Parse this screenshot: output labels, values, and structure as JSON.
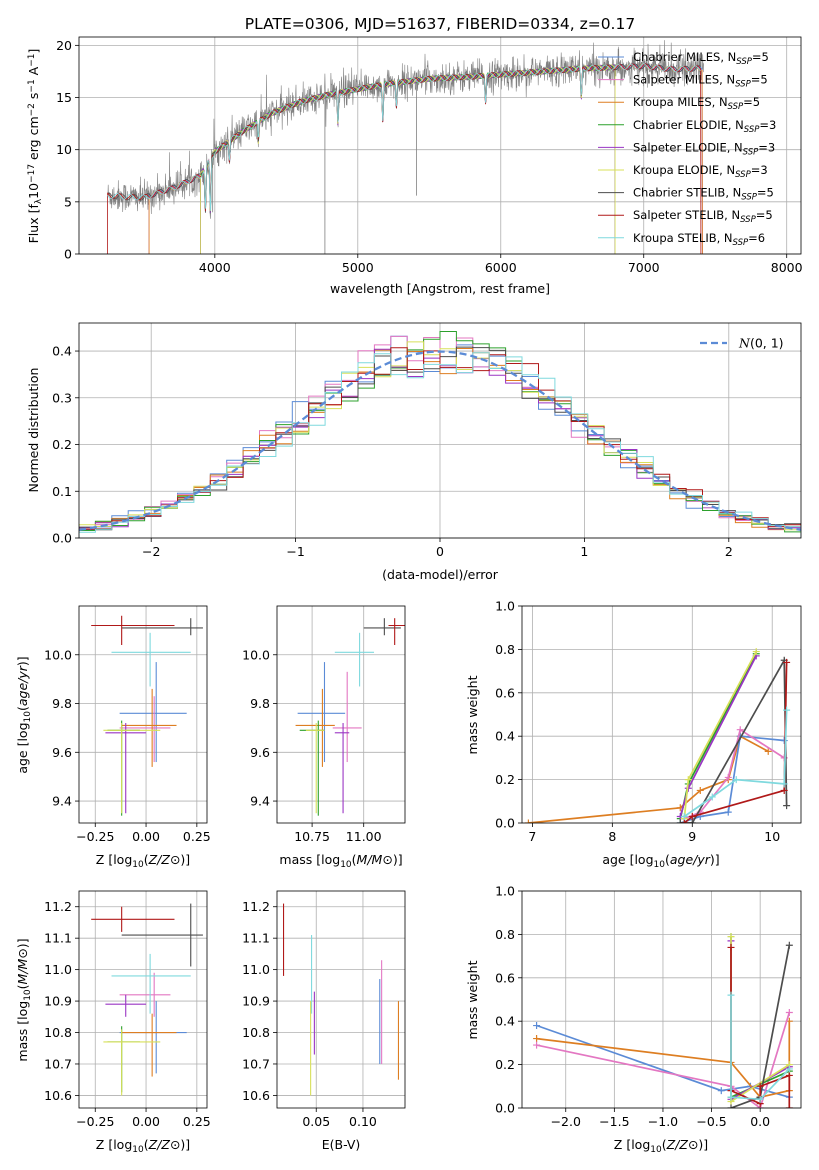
{
  "figure": {
    "title": "PLATE=0306, MJD=51637, FIBERID=0334, z=0.17"
  },
  "colors": {
    "Chabrier MILES": "#5b8bd6",
    "Salpeter MILES": "#e377c2",
    "Kroupa MILES": "#dd7e22",
    "Chabrier ELODIE": "#2ca02c",
    "Salpeter ELODIE": "#9a35c4",
    "Kroupa ELODIE": "#d8e05a",
    "Chabrier STELIB": "#4d4d4d",
    "Salpeter STELIB": "#b01919",
    "Kroupa STELIB": "#7fd9de",
    "data": "#808080",
    "gaussian": "#5b8bd6"
  },
  "chart_data": [
    {
      "id": "spectrum",
      "type": "line",
      "xlabel": "wavelength [Angstrom, rest frame]",
      "ylabel": "Flux [f_λ10^-17 erg cm^-2 s^-1 A^-1]",
      "xlim": [
        3050,
        8100
      ],
      "ylim": [
        0,
        20.8
      ],
      "xticks": [
        4000,
        5000,
        6000,
        7000,
        8000
      ],
      "yticks": [
        0,
        5,
        10,
        15,
        20
      ],
      "legend_loc": "upper right",
      "legend": [
        "Chabrier MILES, N_SSP=5",
        "Salpeter MILES, N_SSP=5",
        "Kroupa MILES, N_SSP=5",
        "Chabrier ELODIE, N_SSP=3",
        "Salpeter ELODIE, N_SSP=3",
        "Kroupa ELODIE, N_SSP=3",
        "Chabrier STELIB, N_SSP=5",
        "Salpeter STELIB, N_SSP=5",
        "Kroupa STELIB, N_SSP=6"
      ],
      "continuum": [
        [
          3250,
          5.6
        ],
        [
          3500,
          5.4
        ],
        [
          3700,
          6.3
        ],
        [
          3900,
          7.5
        ],
        [
          4000,
          9.8
        ],
        [
          4200,
          11.8
        ],
        [
          4400,
          13.5
        ],
        [
          4600,
          14.6
        ],
        [
          4800,
          15.3
        ],
        [
          5000,
          15.8
        ],
        [
          5200,
          16.3
        ],
        [
          5500,
          16.8
        ],
        [
          5800,
          17.0
        ],
        [
          6000,
          17.2
        ],
        [
          6300,
          17.5
        ],
        [
          6600,
          17.8
        ],
        [
          7000,
          18.0
        ],
        [
          7200,
          17.7
        ],
        [
          7400,
          17.8
        ]
      ],
      "absorption_lines": [
        [
          3934,
          4.2
        ],
        [
          3969,
          4.0
        ],
        [
          4102,
          9.0
        ],
        [
          4304,
          10.8
        ],
        [
          4861,
          12.5
        ],
        [
          5175,
          12.8
        ],
        [
          5270,
          14.2
        ],
        [
          5894,
          14.6
        ],
        [
          6563,
          15.0
        ]
      ],
      "model_ranges": {
        "MILES": [
          3540,
          7410
        ],
        "ELODIE": [
          3900,
          6800
        ],
        "STELIB": [
          3250,
          7400
        ]
      },
      "data_spikes": [
        [
          4770,
          0.0
        ],
        [
          5410,
          5.6
        ],
        [
          3985,
          4.0
        ]
      ]
    },
    {
      "id": "residuals",
      "type": "histogram",
      "xlabel": "(data-model)/error",
      "ylabel": "Normed distribution",
      "xlim": [
        -2.5,
        2.5
      ],
      "ylim": [
        0,
        0.46
      ],
      "xticks": [
        -2,
        -1,
        0,
        1,
        2
      ],
      "yticks": [
        0.0,
        0.1,
        0.2,
        0.3,
        0.4
      ],
      "legend": [
        "N(0,1)"
      ],
      "legend_loc": "upper right",
      "bins": 44,
      "overlay": {
        "type": "gaussian",
        "mu": 0,
        "sigma": 1,
        "style": "dashed"
      }
    },
    {
      "id": "age_vs_Z",
      "type": "errorbar",
      "xlabel": "Z [log10(Z/Z⊙)]",
      "ylabel": "age  [log10(age/yr)]",
      "xlim": [
        -0.33,
        0.3
      ],
      "ylim": [
        9.31,
        10.2
      ],
      "xticks": [
        -0.25,
        0.0,
        0.25
      ],
      "yticks": [
        9.4,
        9.6,
        9.8,
        10.0
      ],
      "points": [
        {
          "model": "Chabrier MILES",
          "x": 0.05,
          "xerr": [
            0.18,
            0.15
          ],
          "y": 9.76,
          "yerr": [
            0.2,
            0.21
          ]
        },
        {
          "model": "Salpeter MILES",
          "x": 0.04,
          "xerr": [
            0.17,
            0.08
          ],
          "y": 9.7,
          "yerr": [
            0.14,
            0.13
          ]
        },
        {
          "model": "Kroupa MILES",
          "x": 0.03,
          "xerr": [
            0.15,
            0.12
          ],
          "y": 9.71,
          "yerr": [
            0.17,
            0.15
          ]
        },
        {
          "model": "Chabrier ELODIE",
          "x": -0.12,
          "xerr": [
            0.07,
            0.09
          ],
          "y": 9.69,
          "yerr": [
            0.35,
            0.04
          ]
        },
        {
          "model": "Salpeter ELODIE",
          "x": -0.1,
          "xerr": [
            0.1,
            0.1
          ],
          "y": 9.68,
          "yerr": [
            0.33,
            0.04
          ]
        },
        {
          "model": "Kroupa ELODIE",
          "x": -0.12,
          "xerr": [
            0.09,
            0.19
          ],
          "y": 9.69,
          "yerr": [
            0.34,
            0.03
          ]
        },
        {
          "model": "Chabrier STELIB",
          "x": 0.22,
          "xerr": [
            0.34,
            0.06
          ],
          "y": 10.11,
          "yerr": [
            0.03,
            0.04
          ]
        },
        {
          "model": "Salpeter STELIB",
          "x": -0.12,
          "xerr": [
            0.15,
            0.26
          ],
          "y": 10.12,
          "yerr": [
            0.08,
            0.04
          ]
        },
        {
          "model": "Kroupa STELIB",
          "x": 0.02,
          "xerr": [
            0.19,
            0.2
          ],
          "y": 10.01,
          "yerr": [
            0.14,
            0.08
          ]
        }
      ]
    },
    {
      "id": "age_vs_mass",
      "type": "errorbar",
      "xlabel": "mass [log10(M/M⊙)]",
      "ylabel": "",
      "xlim": [
        10.58,
        11.2
      ],
      "ylim": [
        9.31,
        10.2
      ],
      "xticks": [
        10.75,
        11.0
      ],
      "yticks": [
        9.4,
        9.6,
        9.8,
        10.0
      ],
      "points": [
        {
          "model": "Chabrier MILES",
          "x": 10.81,
          "xerr": [
            0.13,
            0.1
          ],
          "y": 9.76,
          "yerr": [
            0.2,
            0.21
          ]
        },
        {
          "model": "Salpeter MILES",
          "x": 10.92,
          "xerr": [
            0.07,
            0.07
          ],
          "y": 9.7,
          "yerr": [
            0.14,
            0.23
          ]
        },
        {
          "model": "Kroupa MILES",
          "x": 10.8,
          "xerr": [
            0.13,
            0.06
          ],
          "y": 9.71,
          "yerr": [
            0.17,
            0.15
          ]
        },
        {
          "model": "Chabrier ELODIE",
          "x": 10.78,
          "xerr": [
            0.09,
            0.03
          ],
          "y": 9.69,
          "yerr": [
            0.35,
            0.04
          ]
        },
        {
          "model": "Salpeter ELODIE",
          "x": 10.9,
          "xerr": [
            0.04,
            0.03
          ],
          "y": 9.68,
          "yerr": [
            0.33,
            0.04
          ]
        },
        {
          "model": "Kroupa ELODIE",
          "x": 10.77,
          "xerr": [
            0.05,
            0.04
          ],
          "y": 9.69,
          "yerr": [
            0.34,
            0.03
          ]
        },
        {
          "model": "Chabrier STELIB",
          "x": 11.1,
          "xerr": [
            0.1,
            0.08
          ],
          "y": 10.11,
          "yerr": [
            0.03,
            0.04
          ]
        },
        {
          "model": "Salpeter STELIB",
          "x": 11.15,
          "xerr": [
            0.03,
            0.05
          ],
          "y": 10.12,
          "yerr": [
            0.08,
            0.03
          ]
        },
        {
          "model": "Kroupa STELIB",
          "x": 10.98,
          "xerr": [
            0.12,
            0.07
          ],
          "y": 10.01,
          "yerr": [
            0.14,
            0.08
          ]
        }
      ]
    },
    {
      "id": "massweight_vs_age",
      "type": "line",
      "xlabel": "age  [log10(age/yr)]",
      "ylabel": "mass weight",
      "xlim": [
        6.87,
        10.36
      ],
      "ylim": [
        0,
        1.0
      ],
      "xticks": [
        7,
        8,
        9,
        10
      ],
      "yticks": [
        0.0,
        0.2,
        0.4,
        0.6,
        0.8,
        1.0
      ],
      "series": [
        {
          "model": "Kroupa MILES",
          "x": [
            6.95,
            8.85,
            9.1,
            9.45,
            9.6,
            9.95
          ],
          "y": [
            0.0,
            0.07,
            0.15,
            0.2,
            0.4,
            0.33
          ]
        },
        {
          "model": "Chabrier MILES",
          "x": [
            8.85,
            9.1,
            9.45,
            9.6,
            10.15
          ],
          "y": [
            0.0,
            0.03,
            0.05,
            0.4,
            0.38
          ]
        },
        {
          "model": "Salpeter MILES",
          "x": [
            8.9,
            9.1,
            9.45,
            9.6,
            10.15
          ],
          "y": [
            0.02,
            0.05,
            0.21,
            0.43,
            0.3
          ]
        },
        {
          "model": "Chabrier ELODIE",
          "x": [
            8.85,
            8.95,
            9.8
          ],
          "y": [
            0.02,
            0.18,
            0.78
          ]
        },
        {
          "model": "Salpeter ELODIE",
          "x": [
            8.85,
            8.95,
            9.8
          ],
          "y": [
            0.03,
            0.16,
            0.77
          ]
        },
        {
          "model": "Kroupa ELODIE",
          "x": [
            8.9,
            8.95,
            9.8
          ],
          "y": [
            0.02,
            0.2,
            0.79
          ]
        },
        {
          "model": "Chabrier STELIB",
          "x": [
            8.85,
            9.0,
            10.15,
            10.18
          ],
          "y": [
            0.0,
            0.0,
            0.75,
            0.08
          ]
        },
        {
          "model": "Salpeter STELIB",
          "x": [
            8.9,
            9.0,
            10.15,
            10.18
          ],
          "y": [
            0.0,
            0.03,
            0.15,
            0.74
          ]
        },
        {
          "model": "Kroupa STELIB",
          "x": [
            8.9,
            9.25,
            9.55,
            10.15,
            10.18
          ],
          "y": [
            0.03,
            0.12,
            0.2,
            0.18,
            0.52
          ]
        }
      ]
    },
    {
      "id": "mass_vs_Z",
      "type": "errorbar",
      "xlabel": "Z [log10(Z/Z⊙)]",
      "ylabel": "mass [log10(M/M⊙)]",
      "xlim": [
        -0.33,
        0.3
      ],
      "ylim": [
        10.56,
        11.25
      ],
      "xticks": [
        -0.25,
        0.0,
        0.25
      ],
      "yticks": [
        10.6,
        10.7,
        10.8,
        10.9,
        11.0,
        11.1,
        11.2
      ],
      "points": [
        {
          "model": "Chabrier MILES",
          "x": 0.05,
          "xerr": [
            0.18,
            0.15
          ],
          "y": 10.8,
          "yerr": [
            0.13,
            0.1
          ]
        },
        {
          "model": "Salpeter MILES",
          "x": 0.04,
          "xerr": [
            0.17,
            0.08
          ],
          "y": 10.92,
          "yerr": [
            0.07,
            0.07
          ]
        },
        {
          "model": "Kroupa MILES",
          "x": 0.03,
          "xerr": [
            0.15,
            0.12
          ],
          "y": 10.8,
          "yerr": [
            0.14,
            0.06
          ]
        },
        {
          "model": "Chabrier ELODIE",
          "x": -0.12,
          "xerr": [
            0.07,
            0.09
          ],
          "y": 10.77,
          "yerr": [
            0.16,
            0.05
          ]
        },
        {
          "model": "Salpeter ELODIE",
          "x": -0.1,
          "xerr": [
            0.1,
            0.1
          ],
          "y": 10.89,
          "yerr": [
            0.04,
            0.03
          ]
        },
        {
          "model": "Kroupa ELODIE",
          "x": -0.12,
          "xerr": [
            0.09,
            0.19
          ],
          "y": 10.77,
          "yerr": [
            0.17,
            0.04
          ]
        },
        {
          "model": "Chabrier STELIB",
          "x": 0.22,
          "xerr": [
            0.34,
            0.06
          ],
          "y": 11.11,
          "yerr": [
            0.1,
            0.1
          ]
        },
        {
          "model": "Salpeter STELIB",
          "x": -0.12,
          "xerr": [
            0.15,
            0.26
          ],
          "y": 11.16,
          "yerr": [
            0.04,
            0.04
          ]
        },
        {
          "model": "Kroupa STELIB",
          "x": 0.02,
          "xerr": [
            0.19,
            0.2
          ],
          "y": 10.98,
          "yerr": [
            0.12,
            0.07
          ]
        }
      ]
    },
    {
      "id": "mass_vs_EBV",
      "type": "errorbar",
      "xlabel": "E(B-V)",
      "ylabel": "",
      "xlim": [
        0.008,
        0.145
      ],
      "ylim": [
        10.56,
        11.25
      ],
      "xticks": [
        0.05,
        0.1
      ],
      "yticks": [
        10.6,
        10.7,
        10.8,
        10.9,
        11.0,
        11.1,
        11.2
      ],
      "points": [
        {
          "model": "Salpeter STELIB",
          "x": 0.015,
          "yerr": [
            0.18,
            0.05
          ],
          "y": 11.16
        },
        {
          "model": "Kroupa STELIB",
          "x": 0.045,
          "yerr": [
            0.12,
            0.13
          ],
          "y": 10.98
        },
        {
          "model": "Kroupa ELODIE",
          "x": 0.044,
          "yerr": [
            0.17,
            0.13
          ],
          "y": 10.77
        },
        {
          "model": "Salpeter ELODIE",
          "x": 0.048,
          "yerr": [
            0.16,
            0.04
          ],
          "y": 10.89
        },
        {
          "model": "Chabrier MILES",
          "x": 0.118,
          "yerr": [
            0.1,
            0.17
          ],
          "y": 10.8
        },
        {
          "model": "Salpeter MILES",
          "x": 0.12,
          "yerr": [
            0.22,
            0.11
          ],
          "y": 10.92
        },
        {
          "model": "Kroupa MILES",
          "x": 0.138,
          "yerr": [
            0.15,
            0.1
          ],
          "y": 10.8
        }
      ]
    },
    {
      "id": "massweight_vs_Z",
      "type": "line",
      "xlabel": "Z [log10(Z/Z⊙)]",
      "ylabel": "mass weight",
      "xlim": [
        -2.45,
        0.42
      ],
      "ylim": [
        0,
        1.0
      ],
      "xticks": [
        -2.0,
        -1.5,
        -1.0,
        -0.5,
        0.0
      ],
      "yticks": [
        0.0,
        0.2,
        0.4,
        0.6,
        0.8,
        1.0
      ],
      "series": [
        {
          "model": "Chabrier MILES",
          "x": [
            -2.3,
            -0.4,
            -0.1,
            0.3
          ],
          "y": [
            0.38,
            0.08,
            0.1,
            0.05
          ]
        },
        {
          "model": "Kroupa MILES",
          "x": [
            -2.3,
            -0.3,
            0.0,
            0.3,
            0.3
          ],
          "y": [
            0.32,
            0.21,
            0.05,
            0.08,
            0.4
          ]
        },
        {
          "model": "Salpeter MILES",
          "x": [
            -2.3,
            -0.3,
            0.0,
            0.3
          ],
          "y": [
            0.29,
            0.1,
            0.0,
            0.44
          ]
        },
        {
          "model": "Chabrier ELODIE",
          "x": [
            -0.3,
            -0.3,
            0.3
          ],
          "y": [
            0.79,
            0.05,
            0.17
          ]
        },
        {
          "model": "Salpeter ELODIE",
          "x": [
            -0.3,
            -0.3,
            0.3
          ],
          "y": [
            0.77,
            0.04,
            0.19
          ]
        },
        {
          "model": "Kroupa ELODIE",
          "x": [
            -0.3,
            -0.3,
            0.3
          ],
          "y": [
            0.79,
            0.03,
            0.2
          ]
        },
        {
          "model": "Chabrier STELIB",
          "x": [
            -0.3,
            0.0,
            0.3
          ],
          "y": [
            0.0,
            0.05,
            0.75
          ]
        },
        {
          "model": "Salpeter STELIB",
          "x": [
            -0.3,
            -0.3,
            0.0,
            0.0,
            0.3,
            0.3
          ],
          "y": [
            0.74,
            0.08,
            0.02,
            0.1,
            0.15,
            0.0
          ]
        },
        {
          "model": "Kroupa STELIB",
          "x": [
            -0.3,
            -0.3,
            0.0,
            0.3
          ],
          "y": [
            0.52,
            0.05,
            0.04,
            0.18
          ]
        }
      ]
    }
  ]
}
